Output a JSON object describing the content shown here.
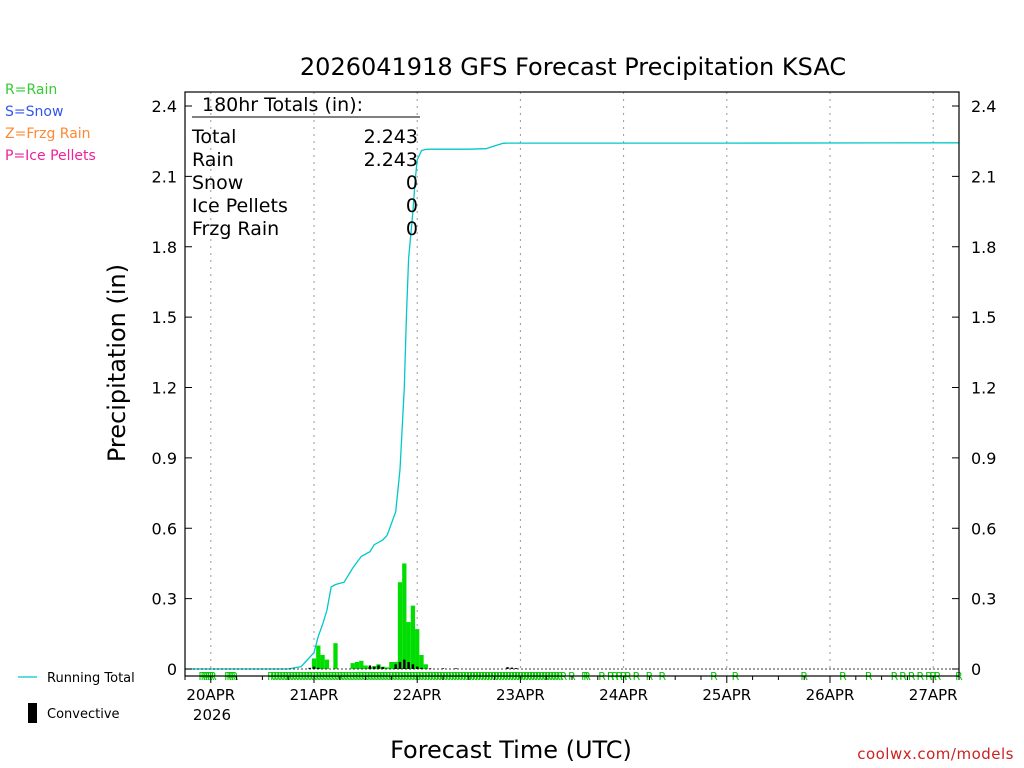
{
  "chart_data": {
    "type": "bar",
    "title": "2026041918 GFS Forecast Precipitation KSAC",
    "xlabel": "Forecast Time (UTC)",
    "ylabel": "Precipitation (in)",
    "ylim": [
      0,
      2.4
    ],
    "y_ticks": [
      0,
      0.3,
      0.6,
      0.9,
      1.2,
      1.5,
      1.8,
      2.1,
      2.4
    ],
    "y_tick_labels": [
      "0",
      "0.3",
      "0.6",
      "0.9",
      "1.2",
      "1.5",
      "1.8",
      "2.1",
      "2.4"
    ],
    "xlim_hours": [
      0,
      180
    ],
    "x_tick_hours": [
      6,
      30,
      54,
      78,
      102,
      126,
      150,
      174
    ],
    "x_tick_labels": [
      "20APR",
      "21APR",
      "22APR",
      "23APR",
      "24APR",
      "25APR",
      "26APR",
      "27APR"
    ],
    "x_year_label": "2026",
    "grid": "vertical dotted at date ticks",
    "summary": {
      "heading": "180hr Totals (in):",
      "rows": [
        {
          "label": "Total",
          "value": "2.243"
        },
        {
          "label": "Rain",
          "value": "2.243"
        },
        {
          "label": "Snow",
          "value": "0"
        },
        {
          "label": "Ice Pellets",
          "value": "0"
        },
        {
          "label": "Frzg Rain",
          "value": "0"
        }
      ]
    },
    "series": [
      {
        "name": "Running Total",
        "color": "#00c8c8",
        "x": [
          0,
          24,
          27,
          28,
          30,
          31,
          32,
          33,
          34,
          35,
          37,
          39,
          41,
          43,
          44,
          46,
          47,
          49,
          50,
          51,
          51.5,
          52,
          53,
          53.5,
          54,
          55,
          56,
          57,
          60,
          66,
          70,
          72,
          74,
          75,
          78,
          126,
          180
        ],
        "values": [
          0,
          0,
          0.01,
          0.03,
          0.07,
          0.14,
          0.19,
          0.25,
          0.35,
          0.36,
          0.37,
          0.43,
          0.48,
          0.5,
          0.53,
          0.55,
          0.57,
          0.67,
          0.85,
          1.2,
          1.5,
          1.75,
          1.95,
          2.08,
          2.17,
          2.21,
          2.215,
          2.216,
          2.216,
          2.216,
          2.218,
          2.23,
          2.241,
          2.242,
          2.242,
          2.242,
          2.243
        ]
      },
      {
        "name": "Rain",
        "color": "#00dd00",
        "x": [
          30,
          31,
          32,
          33,
          35,
          39,
          40,
          41,
          42,
          43,
          44,
          45,
          46,
          47,
          48,
          49,
          50,
          51,
          52,
          53,
          54,
          55,
          56
        ],
        "values": [
          0.045,
          0.1,
          0.06,
          0.04,
          0.11,
          0.025,
          0.03,
          0.035,
          0.015,
          0.008,
          0.012,
          0.02,
          0.01,
          0.007,
          0.03,
          0.03,
          0.37,
          0.45,
          0.2,
          0.27,
          0.17,
          0.06,
          0.02
        ]
      },
      {
        "name": "Convective",
        "color": "#000000",
        "x": [
          29,
          30,
          31,
          43,
          44,
          45,
          46,
          49,
          50,
          51,
          52,
          53,
          54,
          55,
          57,
          60,
          63,
          75,
          76,
          77
        ],
        "values": [
          0.005,
          0.01,
          0.005,
          0.015,
          0.01,
          0.015,
          0.008,
          0.02,
          0.03,
          0.04,
          0.03,
          0.02,
          0.01,
          0.005,
          0.003,
          0.003,
          0.003,
          0.008,
          0.006,
          0.004
        ]
      }
    ],
    "precip_type_markers": {
      "letter": "R",
      "color": "#00cc00",
      "x_hours": [
        4,
        4.5,
        5,
        5.5,
        6,
        6.5,
        10,
        10.5,
        11,
        11.5,
        20,
        20.7,
        21.4,
        22.1,
        22.8,
        23.5,
        24.2,
        24.9,
        25.6,
        26.3,
        27,
        27.7,
        28.4,
        29.1,
        29.8,
        30.5,
        31.2,
        31.9,
        32.6,
        33.3,
        34,
        34.7,
        35.4,
        36.1,
        36.8,
        37.5,
        38.2,
        38.9,
        39.6,
        40.3,
        41,
        41.7,
        42.4,
        43.1,
        43.8,
        44.5,
        45.2,
        45.9,
        46.6,
        47.3,
        48,
        48.7,
        49.4,
        50.1,
        50.8,
        51.5,
        52.2,
        52.9,
        53.6,
        54.3,
        55,
        55.7,
        56.4,
        57.1,
        57.8,
        58.5,
        59.2,
        59.9,
        60.6,
        61.3,
        62,
        62.7,
        63.4,
        64.1,
        64.8,
        65.5,
        66.2,
        66.9,
        67.6,
        68.3,
        69,
        69.7,
        70.4,
        71.1,
        71.8,
        72.5,
        73.2,
        73.9,
        74.6,
        75.3,
        76,
        76.7,
        77.4,
        78.1,
        78.8,
        79.5,
        80.2,
        80.9,
        81.6,
        82.3,
        83,
        83.7,
        84.4,
        85.1,
        85.8,
        86.5,
        87.2,
        88,
        90,
        93,
        93.5,
        97,
        99,
        100,
        101,
        102,
        103,
        105,
        108,
        111,
        123,
        128,
        144,
        153,
        159,
        165,
        167,
        169,
        171,
        173,
        174,
        175,
        180
      ]
    },
    "legend_keys": [
      {
        "label": "R=Rain",
        "color": "#33cc33"
      },
      {
        "label": "S=Snow",
        "color": "#3355ee"
      },
      {
        "label": "Z=Frzg Rain",
        "color": "#ff8833"
      },
      {
        "label": "P=Ice Pellets",
        "color": "#ee2299"
      }
    ],
    "legend_bottom": [
      {
        "label": "Running Total",
        "color": "#00c8c8"
      },
      {
        "label": "Convective",
        "color": "#000000"
      }
    ],
    "credit": "coolwx.com/models"
  }
}
